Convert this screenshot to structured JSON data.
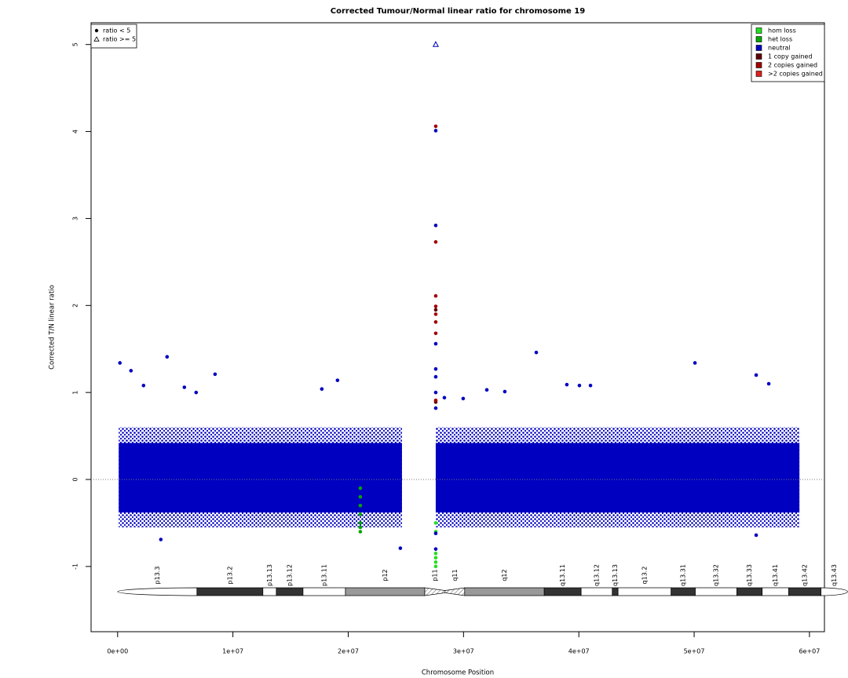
{
  "chart_data": {
    "type": "scatter",
    "title": "Corrected Tumour/Normal linear ratio for chromosome  19",
    "x_label": "Chromosome Position",
    "y_label": "Corrected T/N linear ratio",
    "xlim": [
      -2300000,
      61300000
    ],
    "ylim": [
      -1.75,
      5.25
    ],
    "xticks": [
      {
        "value": 0,
        "label": "0e+00"
      },
      {
        "value": 10000000,
        "label": "1e+07"
      },
      {
        "value": 20000000,
        "label": "2e+07"
      },
      {
        "value": 30000000,
        "label": "3e+07"
      },
      {
        "value": 40000000,
        "label": "4e+07"
      },
      {
        "value": 50000000,
        "label": "5e+07"
      },
      {
        "value": 60000000,
        "label": "6e+07"
      }
    ],
    "yticks": [
      -1,
      0,
      1,
      2,
      3,
      4,
      5
    ],
    "reference_line": 0,
    "legend": "top-right",
    "shape_legend": "top-left",
    "shape_legend_entries": [
      {
        "label": "ratio < 5",
        "shape": "dot"
      },
      {
        "label": "ratio >= 5",
        "shape": "triangle"
      }
    ],
    "series": [
      {
        "name": "hom loss",
        "color": "#22e022",
        "x": [
          27590000,
          27590000,
          27590000,
          27590000,
          27590000,
          27590000
        ],
        "values": [
          -0.5,
          -0.6,
          -0.85,
          -0.9,
          -0.95,
          -1.0
        ]
      },
      {
        "name": "het loss",
        "color": "#00a800",
        "x": [
          21050000,
          21050000,
          21050000,
          21050000,
          21050000,
          21050000,
          21050000
        ],
        "values": [
          -0.1,
          -0.2,
          -0.3,
          -0.4,
          -0.5,
          -0.55,
          -0.6
        ]
      },
      {
        "name": "neutral",
        "color": "#0000c0",
        "x": [
          200000,
          1160000,
          4290000,
          8450000,
          19070000,
          17710000,
          36310000,
          50070000,
          55380000,
          56470000,
          38960000,
          40050000,
          41010000,
          2250000,
          5790000,
          6810000,
          32020000,
          33580000,
          29970000,
          28340000,
          24520000,
          3750000,
          27590000,
          27590000,
          27590000,
          27590000,
          27590000,
          27590000,
          27590000,
          27590000,
          27590000,
          55380000
        ],
        "values": [
          1.34,
          1.25,
          1.41,
          1.21,
          1.14,
          1.04,
          1.46,
          1.34,
          1.2,
          1.1,
          1.09,
          1.08,
          1.08,
          1.08,
          1.06,
          1.0,
          1.03,
          1.01,
          0.93,
          0.94,
          -0.79,
          -0.69,
          2.92,
          4.01,
          1.56,
          1.27,
          1.18,
          1.0,
          0.82,
          -0.8,
          -0.62,
          -0.64
        ],
        "cloud": [
          {
            "x0": 100000,
            "x1": 24660000,
            "y0": -0.55,
            "y1": 0.6,
            "fill": "sparse"
          },
          {
            "x0": 27590000,
            "x1": 59130000,
            "y0": -0.55,
            "y1": 0.6,
            "fill": "sparse"
          },
          {
            "x0": 100000,
            "x1": 24660000,
            "y0": -0.38,
            "y1": 0.42,
            "fill": "solid"
          },
          {
            "x0": 27590000,
            "x1": 59130000,
            "y0": -0.38,
            "y1": 0.42,
            "fill": "solid"
          }
        ],
        "capped_x": [
          27590000
        ],
        "capped_values": [
          5
        ]
      },
      {
        "name": "1 copy gained",
        "color": "#600000",
        "x": [
          27590000,
          27590000
        ],
        "values": [
          1.95,
          0.89
        ]
      },
      {
        "name": "2 copies gained",
        "color": "#a00000",
        "x": [
          27590000,
          27590000,
          27590000,
          27590000,
          27590000,
          27590000,
          27590000,
          27590000
        ],
        "values": [
          4.06,
          2.73,
          2.11,
          1.99,
          1.9,
          1.81,
          1.68,
          0.91
        ]
      },
      {
        "name": ">2 copies gained",
        "color": "#dd2020",
        "x": [],
        "values": []
      }
    ],
    "ideogram": [
      {
        "label": "p13.3",
        "start": 0,
        "end": 6880000,
        "stain": "gneg"
      },
      {
        "label": "p13.2",
        "start": 6880000,
        "end": 12600000,
        "stain": "gpos100"
      },
      {
        "label": "p13.13",
        "start": 12600000,
        "end": 13760000,
        "stain": "gneg"
      },
      {
        "label": "p13.12",
        "start": 13760000,
        "end": 16080000,
        "stain": "gpos100"
      },
      {
        "label": "p13.11",
        "start": 16080000,
        "end": 19760000,
        "stain": "gneg"
      },
      {
        "label": "p12",
        "start": 19760000,
        "end": 26640000,
        "stain": "gpos50"
      },
      {
        "label": "p11",
        "start": 26640000,
        "end": 28400000,
        "stain": "acen"
      },
      {
        "label": "q11",
        "start": 28400000,
        "end": 30100000,
        "stain": "acen"
      },
      {
        "label": "q12",
        "start": 30100000,
        "end": 37000000,
        "stain": "gpos50"
      },
      {
        "label": "q13.11",
        "start": 37000000,
        "end": 40200000,
        "stain": "gpos100"
      },
      {
        "label": "q13.12",
        "start": 40200000,
        "end": 42900000,
        "stain": "gneg"
      },
      {
        "label": "q13.13",
        "start": 42900000,
        "end": 43400000,
        "stain": "gpos100"
      },
      {
        "label": "q13.2",
        "start": 43400000,
        "end": 48000000,
        "stain": "gneg"
      },
      {
        "label": "q13.31",
        "start": 48000000,
        "end": 50100000,
        "stain": "gpos100"
      },
      {
        "label": "q13.32",
        "start": 50100000,
        "end": 53700000,
        "stain": "gneg"
      },
      {
        "label": "q13.33",
        "start": 53700000,
        "end": 55900000,
        "stain": "gpos100"
      },
      {
        "label": "q13.41",
        "start": 55900000,
        "end": 58200000,
        "stain": "gneg"
      },
      {
        "label": "q13.42",
        "start": 58200000,
        "end": 61000000,
        "stain": "gpos100"
      },
      {
        "label": "q13.43",
        "start": 61000000,
        "end": 63300000,
        "stain": "gneg"
      }
    ]
  }
}
